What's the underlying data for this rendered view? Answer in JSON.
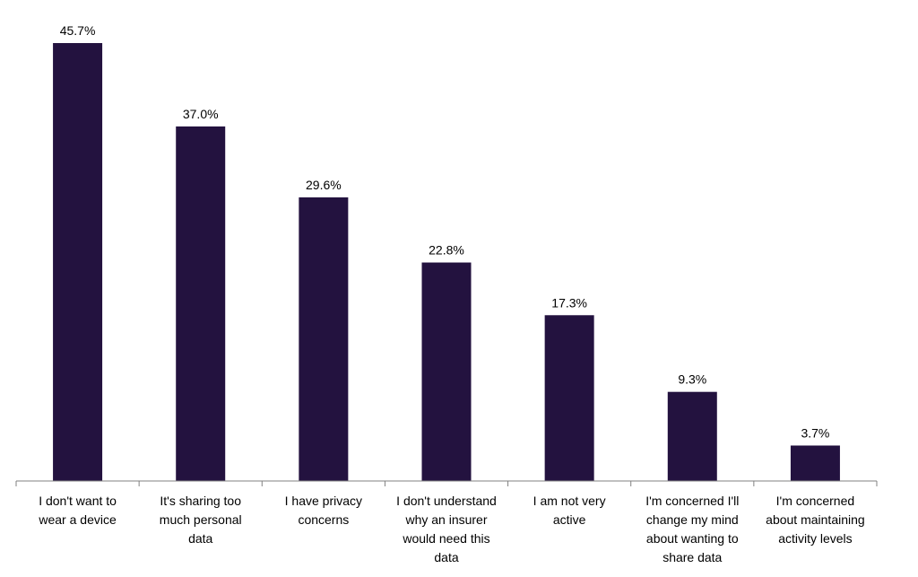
{
  "chart_data": {
    "type": "bar",
    "categories": [
      [
        "I don't want to",
        "wear a device"
      ],
      [
        "It's sharing too",
        "much personal",
        "data"
      ],
      [
        "I have privacy",
        "concerns"
      ],
      [
        "I don't understand",
        "why an insurer",
        "would need this",
        "data"
      ],
      [
        "I am not very",
        "active"
      ],
      [
        "I'm concerned I'll",
        "change my mind",
        "about wanting to",
        "share data"
      ],
      [
        "I'm concerned",
        "about maintaining",
        "activity levels"
      ]
    ],
    "values": [
      45.7,
      37.0,
      29.6,
      22.8,
      17.3,
      9.3,
      3.7
    ],
    "data_labels": [
      "45.7%",
      "37.0%",
      "29.6%",
      "22.8%",
      "17.3%",
      "9.3%",
      "3.7%"
    ],
    "title": "",
    "xlabel": "",
    "ylabel": "",
    "ylim": [
      0,
      45.7
    ],
    "grid": false,
    "legend": "none",
    "bar_color": "#23123f",
    "axis_color": "#808080"
  }
}
